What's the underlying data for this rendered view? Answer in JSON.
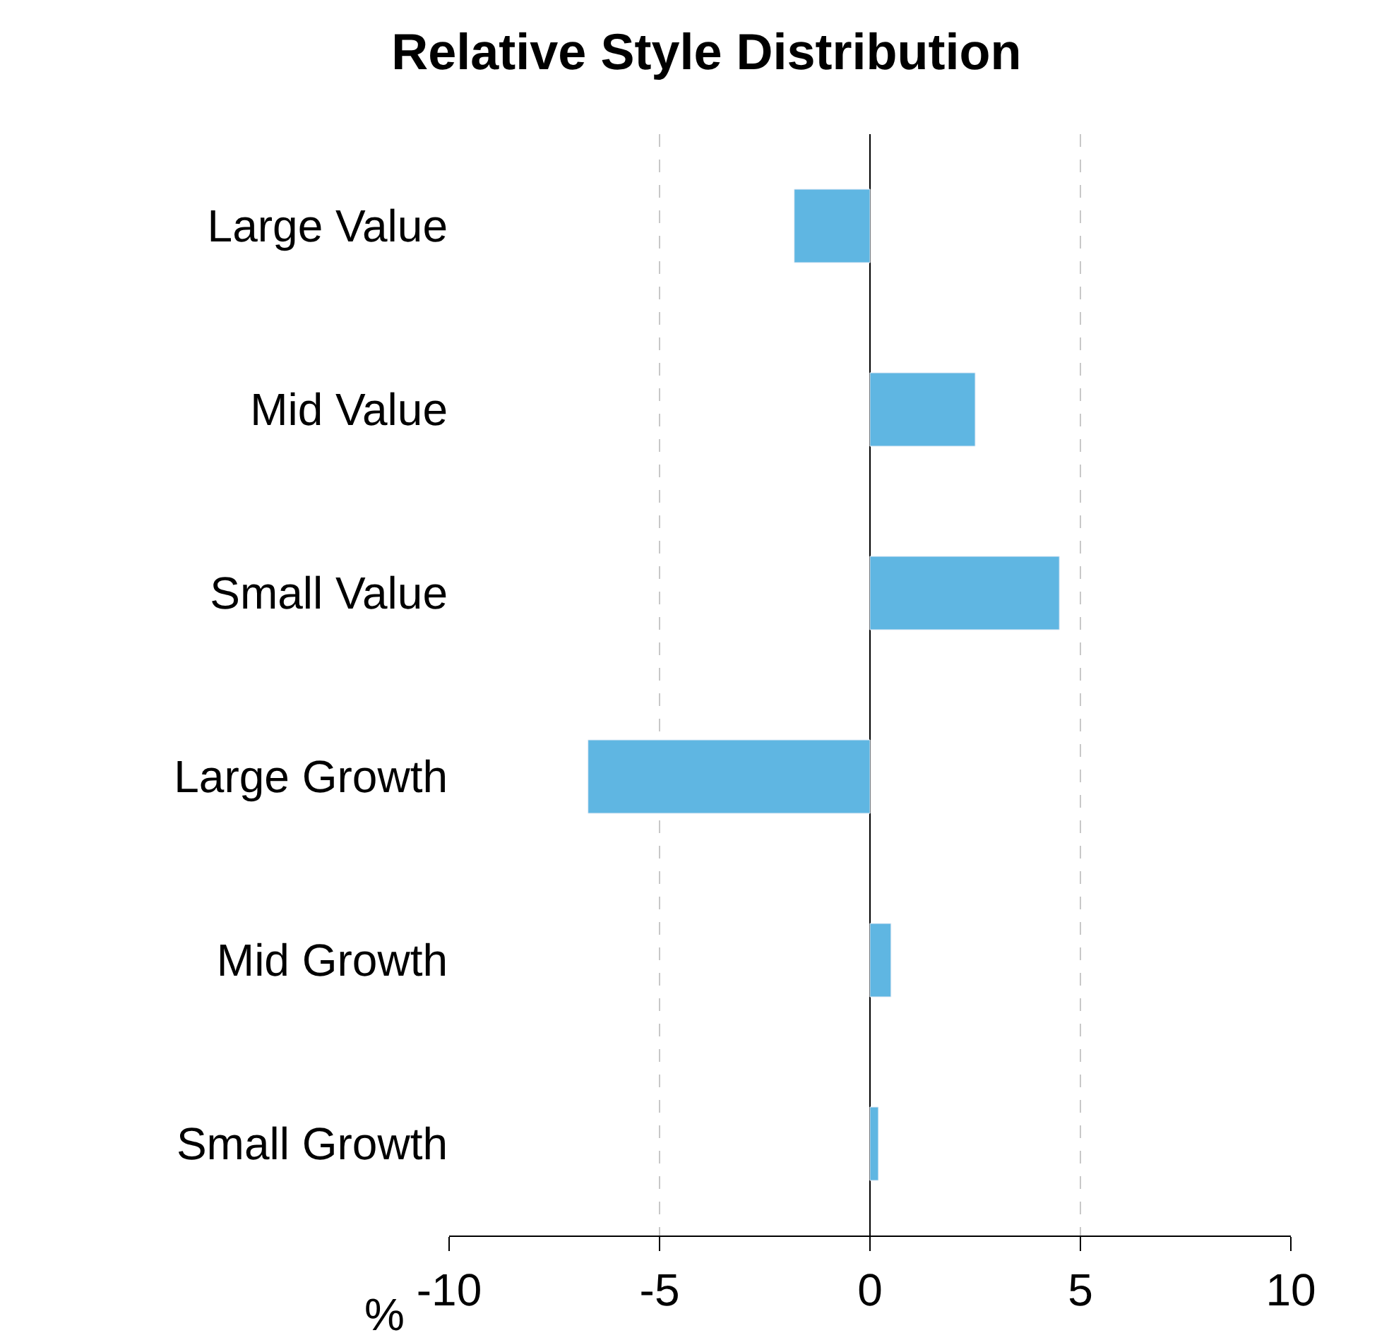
{
  "chart_data": {
    "type": "bar",
    "orientation": "horizontal",
    "title": "Relative Style Distribution",
    "xlabel": "%",
    "categories": [
      "Large Value",
      "Mid Value",
      "Small Value",
      "Large Growth",
      "Mid Growth",
      "Small Growth"
    ],
    "values": [
      -1.8,
      2.5,
      4.5,
      -6.7,
      0.5,
      0.2
    ],
    "color": "#5fb6e2",
    "xlim": [
      -10,
      10
    ],
    "xticks": [
      -10,
      -5,
      0,
      5,
      10
    ],
    "grid": "x"
  }
}
